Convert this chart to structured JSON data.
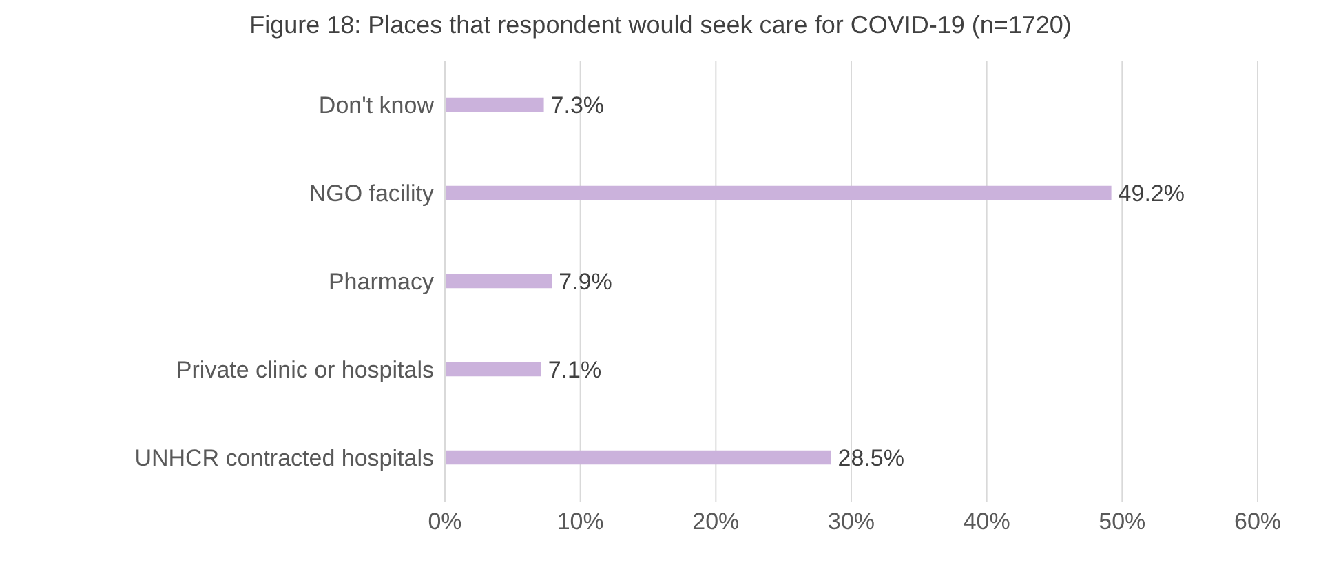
{
  "chart_data": {
    "type": "bar",
    "orientation": "horizontal",
    "title": "Figure 18: Places that respondent would seek care for COVID-19 (n=1720)",
    "categories": [
      "Don't know",
      "NGO facility",
      "Pharmacy",
      "Private clinic or hospitals",
      "UNHCR contracted hospitals"
    ],
    "values": [
      7.3,
      49.2,
      7.9,
      7.1,
      28.5
    ],
    "value_labels": [
      "7.3%",
      "49.2%",
      "7.9%",
      "7.1%",
      "28.5%"
    ],
    "color": "#cbb2dc",
    "xlim": [
      0,
      60
    ],
    "xticks": [
      {
        "value": 0,
        "label": "0%"
      },
      {
        "value": 10,
        "label": "10%"
      },
      {
        "value": 20,
        "label": "20%"
      },
      {
        "value": 30,
        "label": "30%"
      },
      {
        "value": 40,
        "label": "40%"
      },
      {
        "value": 50,
        "label": "50%"
      },
      {
        "value": 60,
        "label": "60%"
      }
    ],
    "grid": "x"
  }
}
